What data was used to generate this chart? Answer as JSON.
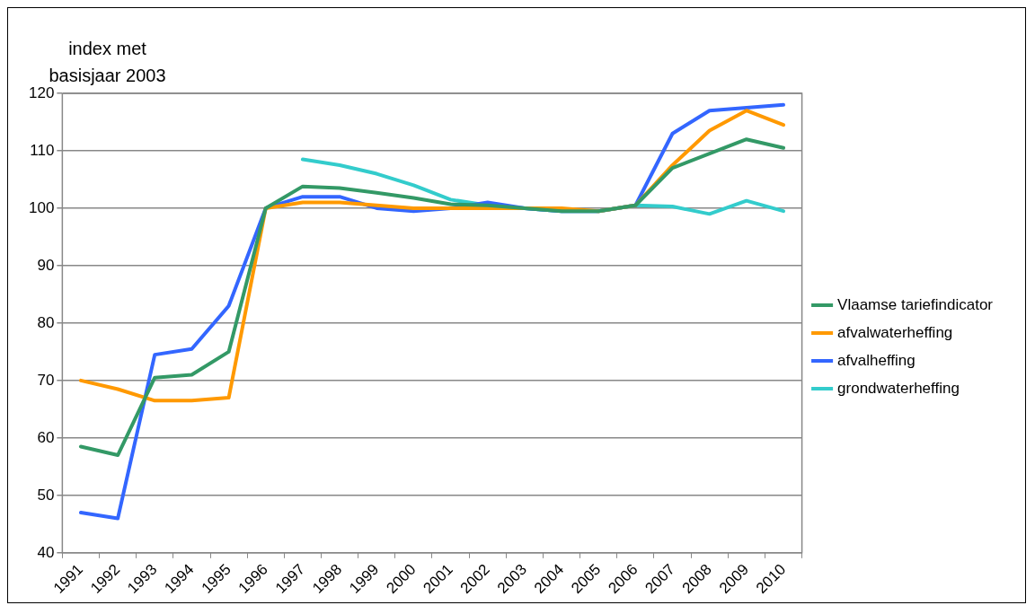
{
  "chart_data": {
    "type": "line",
    "ylabel": "index met basisjaar 2003",
    "categories": [
      "1991",
      "1992",
      "1993",
      "1994",
      "1995",
      "1996",
      "1997",
      "1998",
      "1999",
      "2000",
      "2001",
      "2002",
      "2003",
      "2004",
      "2005",
      "2006",
      "2007",
      "2008",
      "2009",
      "2010"
    ],
    "series": [
      {
        "name": "Vlaamse tariefindicator",
        "color": "#339966",
        "values": [
          58.5,
          57,
          70.5,
          71,
          75,
          100,
          103.8,
          103.5,
          102.7,
          101.8,
          100.7,
          100.5,
          100,
          99.5,
          99.5,
          100.5,
          107,
          109.5,
          112,
          110.5
        ]
      },
      {
        "name": "afvalwaterheffing",
        "color": "#ff9900",
        "values": [
          70,
          68.5,
          66.5,
          66.5,
          67,
          100,
          101,
          101,
          100.5,
          100,
          100,
          100,
          100,
          100,
          99.5,
          100.5,
          107.5,
          113.5,
          117,
          114.5
        ]
      },
      {
        "name": "afvalheffing",
        "color": "#3366ff",
        "values": [
          47,
          46,
          74.5,
          75.5,
          83,
          100,
          102,
          102,
          100,
          99.5,
          100,
          101,
          100,
          99.5,
          99.5,
          100.5,
          113,
          117,
          117.5,
          118
        ]
      },
      {
        "name": "grondwaterheffing",
        "color": "#33cccc",
        "values": [
          null,
          null,
          null,
          null,
          null,
          null,
          108.5,
          107.5,
          106,
          104,
          101.5,
          100.5,
          100,
          99.5,
          99.5,
          100.5,
          100.3,
          99,
          101.3,
          99.5
        ]
      }
    ],
    "ylim": [
      40,
      120
    ],
    "yticks": [
      40,
      50,
      60,
      70,
      80,
      90,
      100,
      110,
      120
    ],
    "grid": "y",
    "legend": "right",
    "marker": "none",
    "line_style": "solid"
  }
}
